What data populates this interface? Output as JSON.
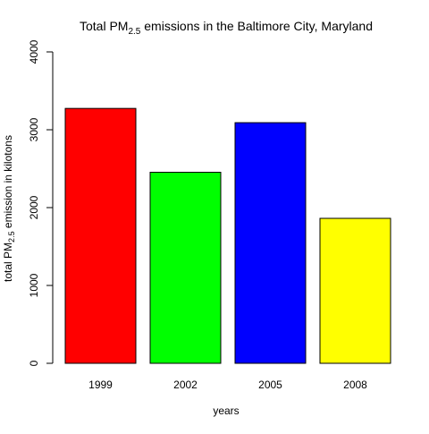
{
  "chart_data": {
    "type": "bar",
    "title": {
      "prefix": "Total PM",
      "subscript": "2.5",
      "suffix": " emissions in the Baltimore City, Maryland"
    },
    "xlabel": "years",
    "ylabel": {
      "prefix": "total PM",
      "subscript": "2.5",
      "suffix": " emission in kilotons"
    },
    "categories": [
      "1999",
      "2002",
      "2005",
      "2008"
    ],
    "values": [
      3274,
      2454,
      3091,
      1862
    ],
    "colors": [
      "#FF0000",
      "#00FF00",
      "#0000FF",
      "#FFFF00"
    ],
    "ylim": [
      0,
      4000
    ],
    "yticks": [
      0,
      1000,
      2000,
      3000,
      4000
    ],
    "ytick_labels": [
      "0",
      "1000",
      "2000",
      "3000",
      "4000"
    ],
    "grid": false,
    "legend": "none"
  }
}
